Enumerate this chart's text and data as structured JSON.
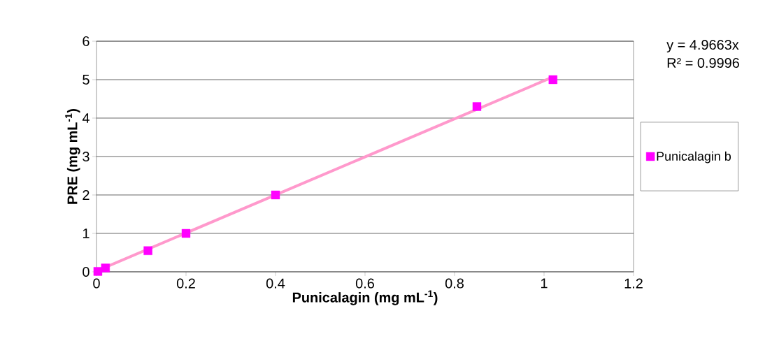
{
  "chart_data": {
    "type": "scatter",
    "xlabel": "Punicalagin (mg mL$^{-1}$)",
    "ylabel": "PRE (mg mL$^{-1}$)",
    "xlim": [
      0,
      1.2
    ],
    "ylim": [
      0,
      6
    ],
    "xticks": [
      0,
      0.2,
      0.4,
      0.6,
      0.8,
      1,
      1.2
    ],
    "yticks": [
      0,
      1,
      2,
      3,
      4,
      5,
      6
    ],
    "grid": "y",
    "legend": "right",
    "series": [
      {
        "name": "Punicalagin b",
        "color": "#ff00ff",
        "marker": "square",
        "x": [
          0.003,
          0.02,
          0.115,
          0.2,
          0.4,
          0.85,
          1.02
        ],
        "values": [
          0.01,
          0.1,
          0.55,
          1,
          2,
          4.3,
          5
        ]
      },
      {
        "type": "line",
        "color": "#ff99cc",
        "marker": "none",
        "x": [
          0,
          1.02
        ],
        "values": [
          0.02,
          5.07
        ]
      }
    ],
    "annotations": [
      "y = 4.9663x",
      "R² = 0.9996"
    ]
  }
}
